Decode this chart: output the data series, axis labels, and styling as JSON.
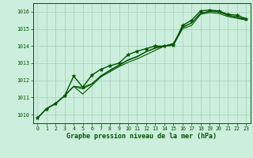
{
  "title": "Graphe pression niveau de la mer (hPa)",
  "bg_color": "#cceedd",
  "plot_bg_color": "#cceedd",
  "grid_color": "#aaccbb",
  "line_color": "#005500",
  "marker_color": "#005500",
  "xlim": [
    -0.5,
    23.5
  ],
  "ylim": [
    1009.5,
    1016.5
  ],
  "xticks": [
    0,
    1,
    2,
    3,
    4,
    5,
    6,
    7,
    8,
    9,
    10,
    11,
    12,
    13,
    14,
    15,
    16,
    17,
    18,
    19,
    20,
    21,
    22,
    23
  ],
  "yticks": [
    1010,
    1011,
    1012,
    1013,
    1014,
    1015,
    1016
  ],
  "series": [
    [
      1009.8,
      1010.35,
      1010.65,
      1011.1,
      1012.25,
      1011.6,
      1012.3,
      1012.65,
      1012.85,
      1013.0,
      1013.5,
      1013.7,
      1013.85,
      1014.0,
      1014.0,
      1014.05,
      1015.2,
      1015.5,
      1016.05,
      1016.1,
      1016.05,
      1015.85,
      1015.8,
      1015.6
    ],
    [
      1009.8,
      1010.35,
      1010.65,
      1011.1,
      1011.65,
      1011.2,
      1011.7,
      1012.2,
      1012.5,
      1012.8,
      1013.05,
      1013.25,
      1013.5,
      1013.75,
      1014.0,
      1014.05,
      1015.0,
      1015.2,
      1015.85,
      1015.95,
      1015.9,
      1015.72,
      1015.62,
      1015.52
    ],
    [
      1009.8,
      1010.35,
      1010.65,
      1011.1,
      1011.65,
      1011.6,
      1011.8,
      1012.25,
      1012.6,
      1012.9,
      1013.2,
      1013.4,
      1013.68,
      1013.9,
      1014.0,
      1014.15,
      1015.1,
      1015.35,
      1015.92,
      1016.02,
      1016.0,
      1015.8,
      1015.7,
      1015.55
    ],
    [
      1009.8,
      1010.35,
      1010.65,
      1011.1,
      1011.65,
      1011.5,
      1011.78,
      1012.27,
      1012.57,
      1012.87,
      1013.17,
      1013.37,
      1013.67,
      1013.87,
      1014.0,
      1014.13,
      1015.08,
      1015.34,
      1015.9,
      1016.04,
      1016.0,
      1015.79,
      1015.68,
      1015.53
    ]
  ]
}
